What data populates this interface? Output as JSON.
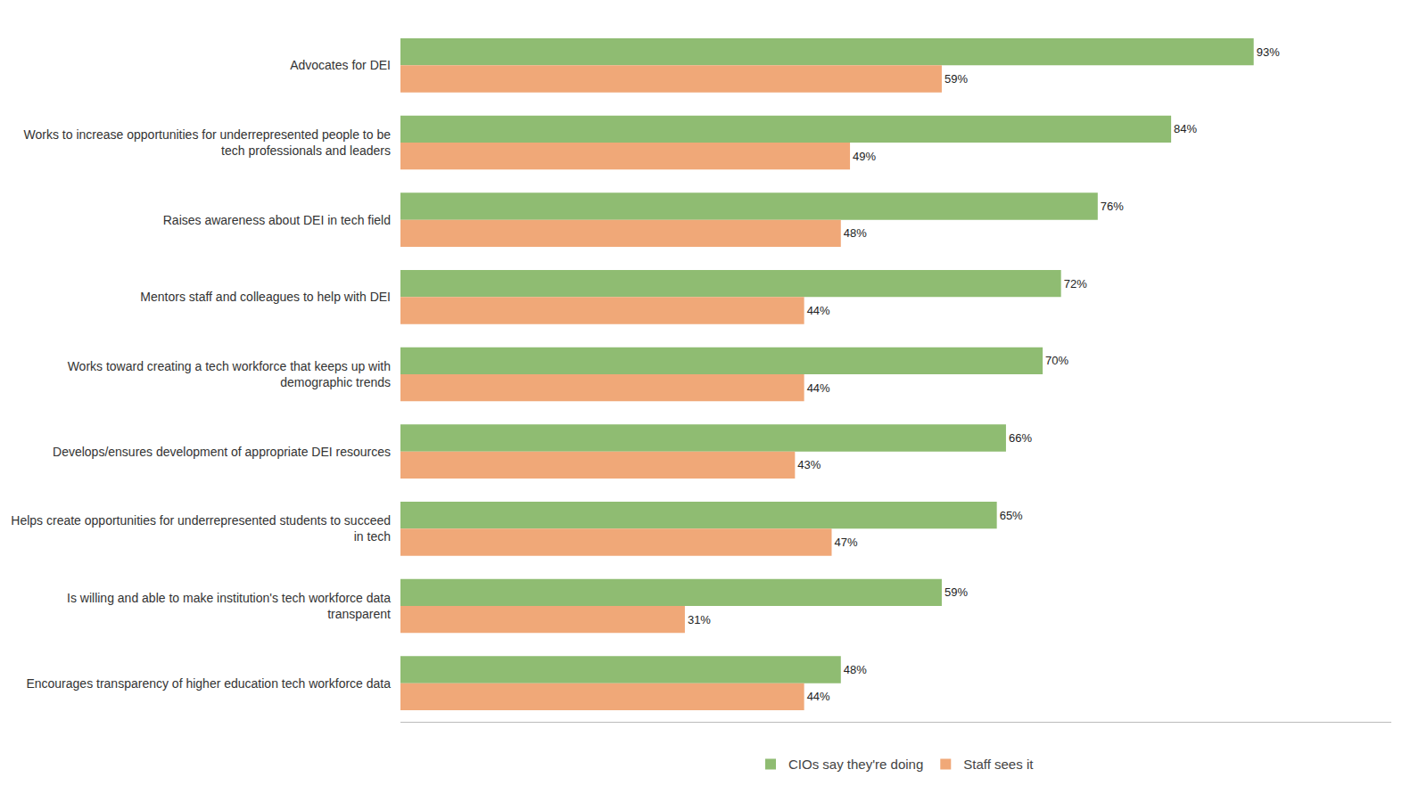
{
  "chart_data": {
    "type": "bar",
    "orientation": "horizontal",
    "categories": [
      "Advocates for DEI",
      "Works to increase opportunities for underrepresented people to be\ntech professionals and leaders",
      "Raises awareness about DEI in tech field",
      "Mentors staff and colleagues to help with DEI",
      "Works toward creating a tech workforce that keeps up with\ndemographic trends",
      "Develops/ensures development of appropriate DEI resources",
      "Helps create opportunities for underrepresented students to succeed\nin tech",
      "Is willing and able to make institution's tech workforce data\ntransparent",
      "Encourages transparency of higher education tech workforce data"
    ],
    "series": [
      {
        "name": "CIOs say they're doing",
        "color": "#8fbc72",
        "values": [
          93,
          84,
          76,
          72,
          70,
          66,
          65,
          59,
          48
        ],
        "value_labels": [
          "93%",
          "84%",
          "76%",
          "72%",
          "70%",
          "66%",
          "65%",
          "59%",
          "48%"
        ]
      },
      {
        "name": "Staff sees it",
        "color": "#f0a878",
        "values": [
          59,
          49,
          48,
          44,
          44,
          43,
          47,
          31,
          44
        ],
        "value_labels": [
          "59%",
          "49%",
          "48%",
          "44%",
          "44%",
          "43%",
          "47%",
          "31%",
          "44%"
        ]
      }
    ],
    "xlim": [
      0,
      108
    ],
    "data_labels": true,
    "tick_labels": "y",
    "grid": false,
    "legend": "bottom"
  }
}
